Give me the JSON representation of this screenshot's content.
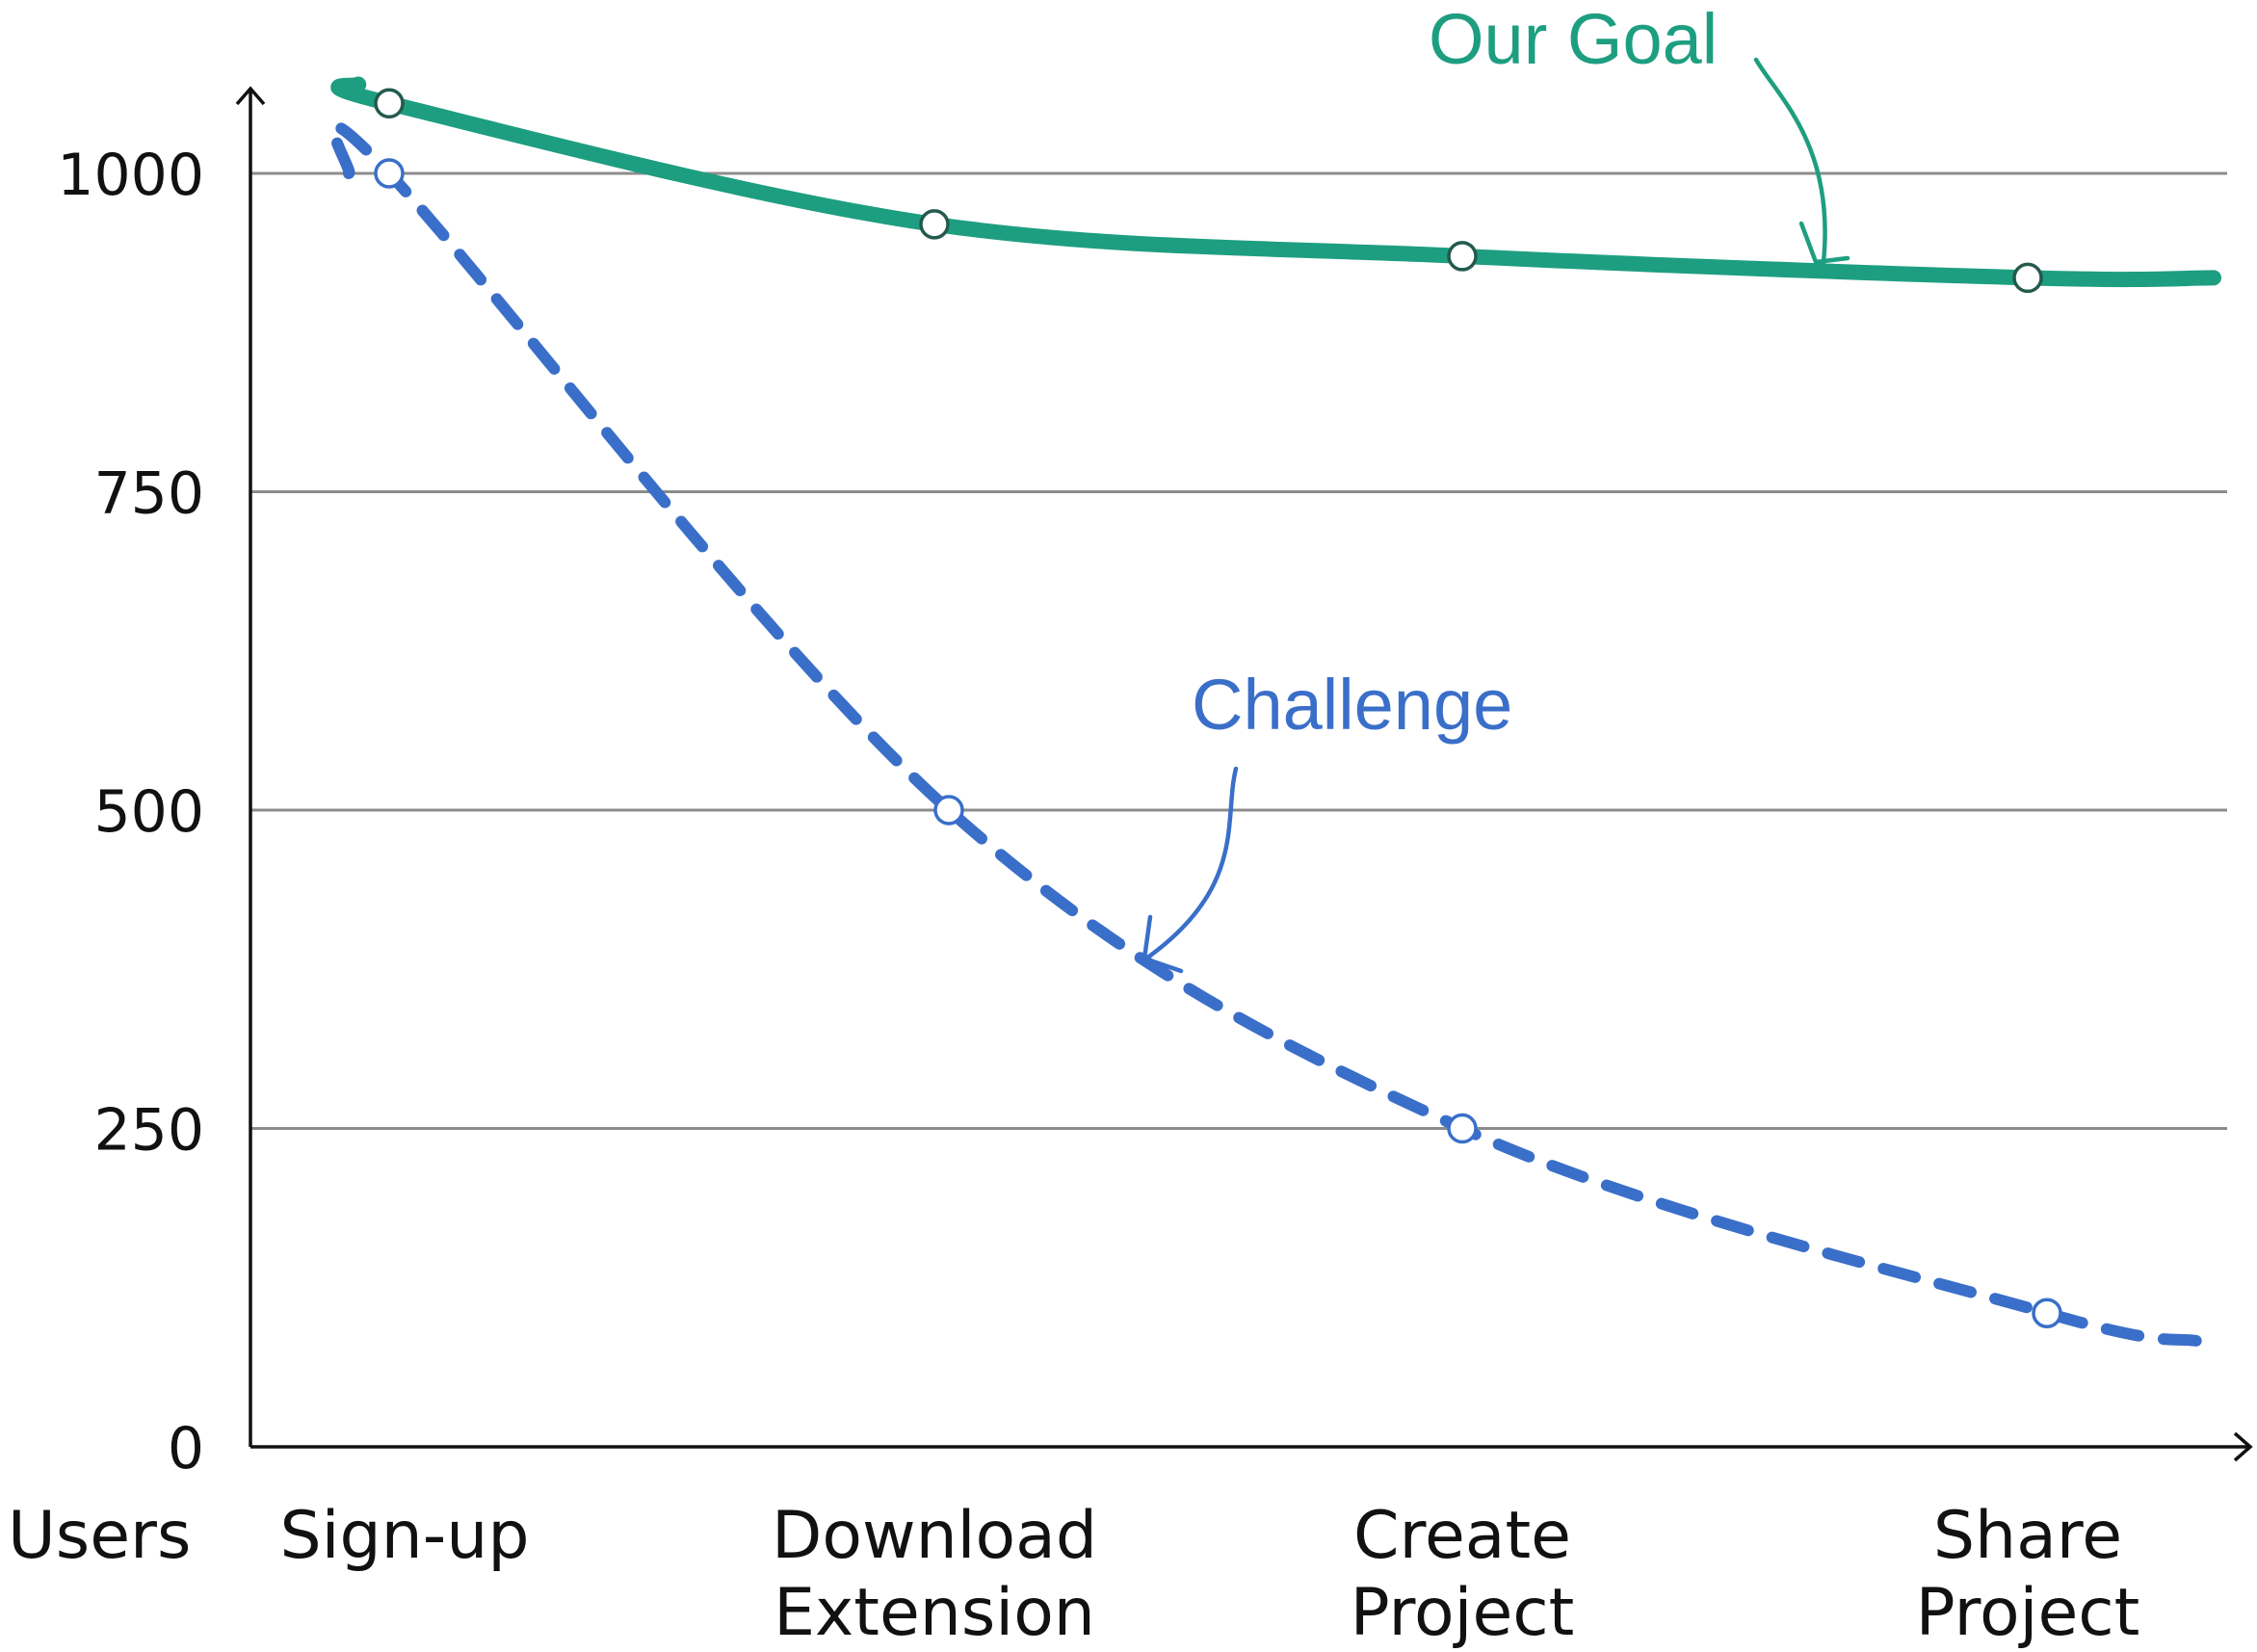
{
  "chart_data": {
    "type": "line",
    "categories": [
      "Sign-up",
      "Download Extension",
      "Create Project",
      "Share Project"
    ],
    "category_lines": [
      [
        "Sign-up"
      ],
      [
        "Download",
        "Extension"
      ],
      [
        "Create",
        "Project"
      ],
      [
        "Share",
        "Project"
      ]
    ],
    "ylabel": "Users",
    "ylim": [
      0,
      1000
    ],
    "yticks": [
      0,
      250,
      500,
      750,
      1000
    ],
    "grid": true,
    "series": [
      {
        "name": "Our Goal",
        "color": "#1e9e80",
        "style": "solid",
        "values": [
          1055,
          960,
          935,
          918
        ]
      },
      {
        "name": "Challenge",
        "color": "#3a6fc9",
        "style": "dashed",
        "values": [
          1000,
          500,
          250,
          105
        ]
      }
    ]
  }
}
